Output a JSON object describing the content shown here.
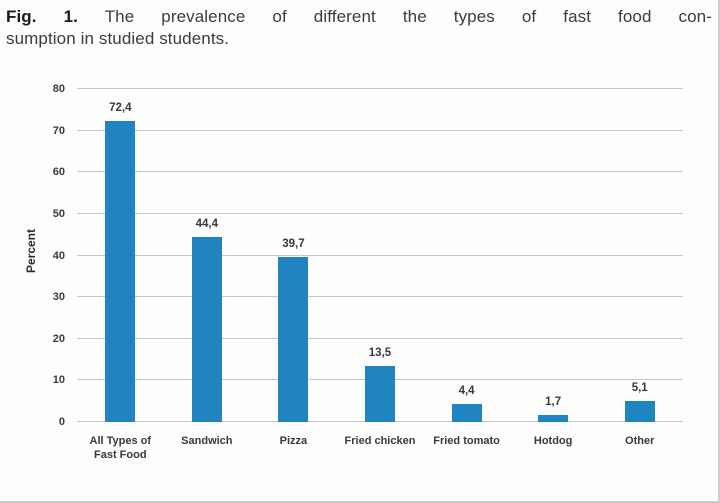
{
  "caption": {
    "fig_label": "Fig. 1.",
    "line1": "The prevalence of different the types of fast food con-",
    "line2": "sumption in studied students."
  },
  "chart_data": {
    "type": "bar",
    "title": "Fig. 1. The prevalence of different the types of fast food consumption in studied students.",
    "categories": [
      "All Types of Fast Food",
      "Sandwich",
      "Pizza",
      "Fried chicken",
      "Fried tomato",
      "Hotdog",
      "Other"
    ],
    "values": [
      72.4,
      44.4,
      39.7,
      13.5,
      4.4,
      1.7,
      5.1
    ],
    "value_labels": [
      "72,4",
      "44,4",
      "39,7",
      "13,5",
      "4,4",
      "1,7",
      "5,1"
    ],
    "xlabel": "",
    "ylabel": "Percent",
    "yticks": [
      0,
      10,
      20,
      30,
      40,
      50,
      60,
      70,
      80
    ],
    "ylim": [
      0,
      80
    ],
    "grid": true,
    "legend": false,
    "bar_color": "#1f84bf",
    "gridline_color": "#c6c6c6",
    "label_color": "#3a3a3c"
  }
}
